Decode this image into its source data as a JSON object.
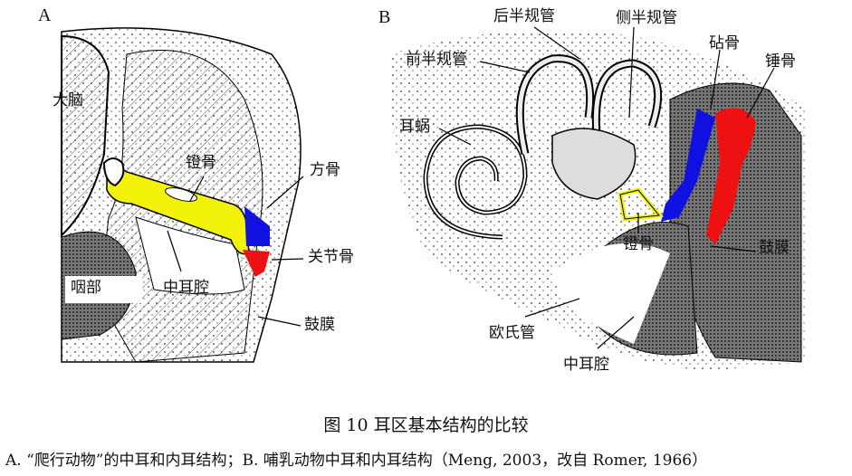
{
  "panel_a": {
    "letter": "A",
    "labels": {
      "brain": "大脑",
      "stapes": "镫骨",
      "quadrate": "方骨",
      "articular": "关节骨",
      "pharynx": "咽部",
      "middle_ear": "中耳腔",
      "eardrum": "鼓膜"
    }
  },
  "panel_b": {
    "letter": "B",
    "labels": {
      "posterior_canal": "后半规管",
      "lateral_canal": "侧半规管",
      "anterior_canal": "前半规管",
      "incus": "砧骨",
      "malleus": "锤骨",
      "cochlea": "耳蜗",
      "stapes": "镫骨",
      "eardrum": "鼓膜",
      "eustachian_tube": "欧氏管",
      "middle_ear": "中耳腔"
    }
  },
  "colors": {
    "stapes": "#f2f20a",
    "quadrate_incus": "#1010e0",
    "articular_malleus": "#ee1111"
  },
  "caption": {
    "title": "图 10  耳区基本结构的比较",
    "text": "A. “爬行动物”的中耳和内耳结构；B. 哺乳动物中耳和内耳结构（Meng, 2003，改自 Romer, 1966）"
  }
}
